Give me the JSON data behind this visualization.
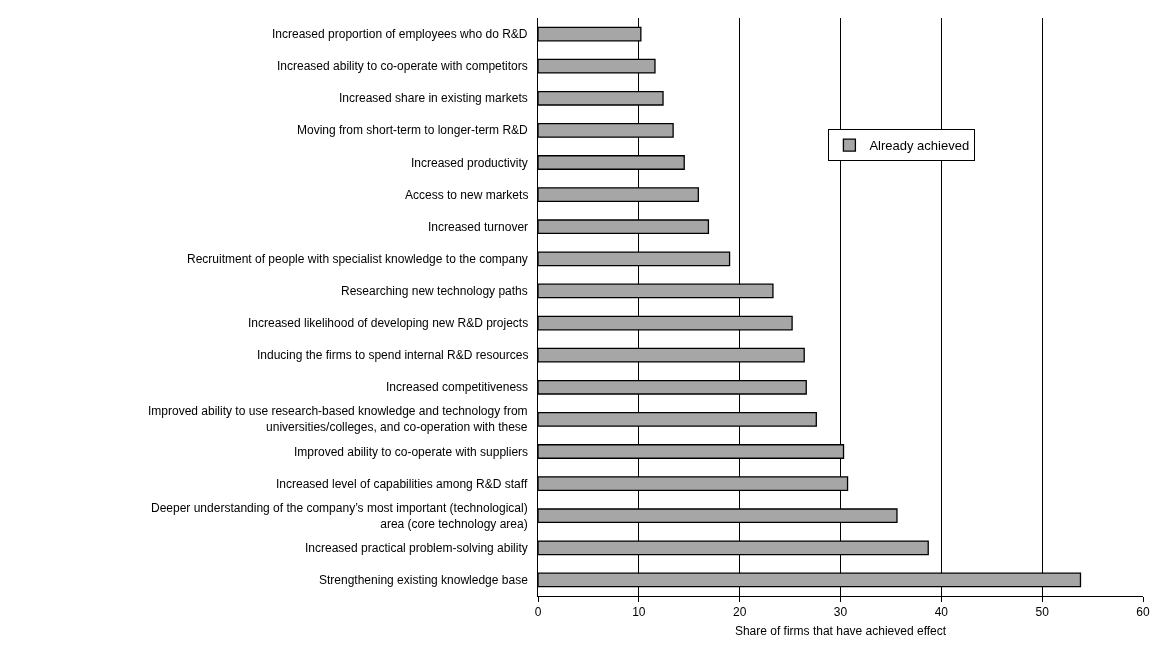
{
  "chart_data": {
    "type": "bar",
    "orientation": "horizontal",
    "xlabel": "Share of firms that have achieved effect",
    "categories": [
      "Increased proportion of employees who do R&D",
      "Increased ability to co-operate with competitors",
      "Increased share in existing markets",
      "Moving from short-term to longer-term R&D",
      "Increased productivity",
      "Access to new markets",
      "Increased turnover",
      "Recruitment of people with specialist knowledge to the company",
      "Researching new technology paths",
      "Increased likelihood of developing new R&D projects",
      "Inducing the firms to spend internal R&D resources",
      "Increased competitiveness",
      "Improved ability to use research-based knowledge and technology from universities/colleges, and co-operation with these",
      "Improved ability to co-operate with suppliers",
      "Increased level of capabilities among R&D staff",
      "Deeper understanding of the company’s most important (technological) area (core technology area)",
      "Increased practical problem-solving ability",
      "Strengthening existing knowledge base"
    ],
    "series": [
      {
        "name": "Already achieved",
        "color": "#a6a6a6",
        "values": [
          10.2,
          11.6,
          12.4,
          13.4,
          14.5,
          15.9,
          16.9,
          19.0,
          23.3,
          25.2,
          26.4,
          26.6,
          27.6,
          30.3,
          30.7,
          35.6,
          38.7,
          53.8
        ]
      }
    ],
    "xlim": [
      0,
      60
    ],
    "xticks": [
      0,
      10,
      20,
      30,
      40,
      50,
      60
    ],
    "grid": "x",
    "legend": "right"
  }
}
